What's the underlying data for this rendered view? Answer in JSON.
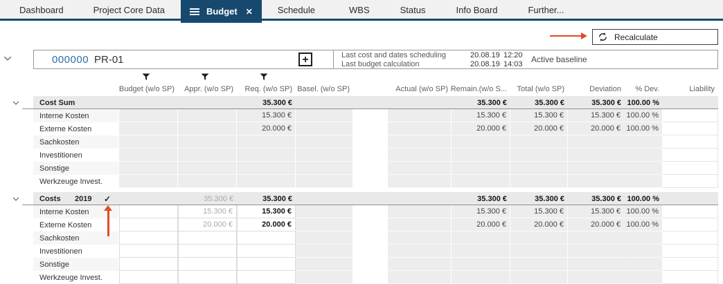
{
  "nav": {
    "tabs": [
      {
        "label": "Dashboard"
      },
      {
        "label": "Project Core Data"
      },
      {
        "label": "Budget",
        "active": true
      },
      {
        "label": "Schedule"
      },
      {
        "label": "WBS"
      },
      {
        "label": "Status"
      },
      {
        "label": "Info Board"
      },
      {
        "label": "Further..."
      }
    ],
    "close_glyph": "✕"
  },
  "toolbar": {
    "recalculate_label": "Recalculate"
  },
  "project": {
    "number": "000000",
    "code": "PR-01",
    "add_glyph": "+",
    "last_scheduling_label": "Last cost and dates scheduling",
    "last_scheduling_date": "20.08.19",
    "last_scheduling_time": "12:20",
    "last_budget_calc_label": "Last budget calculation",
    "last_budget_calc_date": "20.08.19",
    "last_budget_calc_time": "14:03",
    "baseline_label": "Active baseline"
  },
  "table": {
    "columns_left": [
      "Budget (w/o SP)",
      "Appr. (w/o SP)",
      "Req. (w/o SP)",
      "Basel. (w/o SP)"
    ],
    "columns_right": [
      "Actual (w/o SP)",
      "Remain.(w/o S...",
      "Total (w/o SP)",
      "Deviation",
      "% Dev.",
      "Liability"
    ],
    "filtered_columns": [
      "Budget (w/o SP)",
      "Appr. (w/o SP)",
      "Req. (w/o SP)"
    ],
    "check_glyph": "✓",
    "sections": [
      {
        "title": "Cost Sum",
        "year": "",
        "checked": false,
        "editable_inputs": false,
        "summary": {
          "req": "35.300 €",
          "remain": "35.300 €",
          "total": "35.300 €",
          "deviation": "35.300 €",
          "pdev": "100.00 %"
        },
        "rows": [
          {
            "label": "Interne Kosten",
            "req": "15.300 €",
            "remain": "15.300 €",
            "total": "15.300 €",
            "deviation": "15.300 €",
            "pdev": "100.00 %"
          },
          {
            "label": "Externe Kosten",
            "req": "20.000 €",
            "remain": "20.000 €",
            "total": "20.000 €",
            "deviation": "20.000 €",
            "pdev": "100.00 %"
          },
          {
            "label": "Sachkosten"
          },
          {
            "label": "Investitionen"
          },
          {
            "label": "Sonstige"
          },
          {
            "label": "Werkzeuge Invest."
          }
        ]
      },
      {
        "title": "Costs",
        "year": "2019",
        "checked": true,
        "editable_inputs": true,
        "summary": {
          "appr": "35.300 €",
          "req": "35.300 €",
          "remain": "35.300 €",
          "total": "35.300 €",
          "deviation": "35.300 €",
          "pdev": "100.00 %"
        },
        "rows": [
          {
            "label": "Interne Kosten",
            "appr": "15.300 €",
            "req": "15.300 €",
            "remain": "15.300 €",
            "total": "15.300 €",
            "deviation": "15.300 €",
            "pdev": "100.00 %"
          },
          {
            "label": "Externe Kosten",
            "appr": "20.000 €",
            "req": "20.000 €",
            "remain": "20.000 €",
            "total": "20.000 €",
            "deviation": "20.000 €",
            "pdev": "100.00 %"
          },
          {
            "label": "Sachkosten"
          },
          {
            "label": "Investitionen"
          },
          {
            "label": "Sonstige"
          },
          {
            "label": "Werkzeuge Invest."
          }
        ]
      }
    ]
  },
  "colors": {
    "accent_navy": "#17496e",
    "link_blue": "#2a6da8",
    "annotation_arrow": "#e04b28",
    "section_row_bg": "#e9e9e9",
    "readonly_cell_bg": "#ededed"
  }
}
